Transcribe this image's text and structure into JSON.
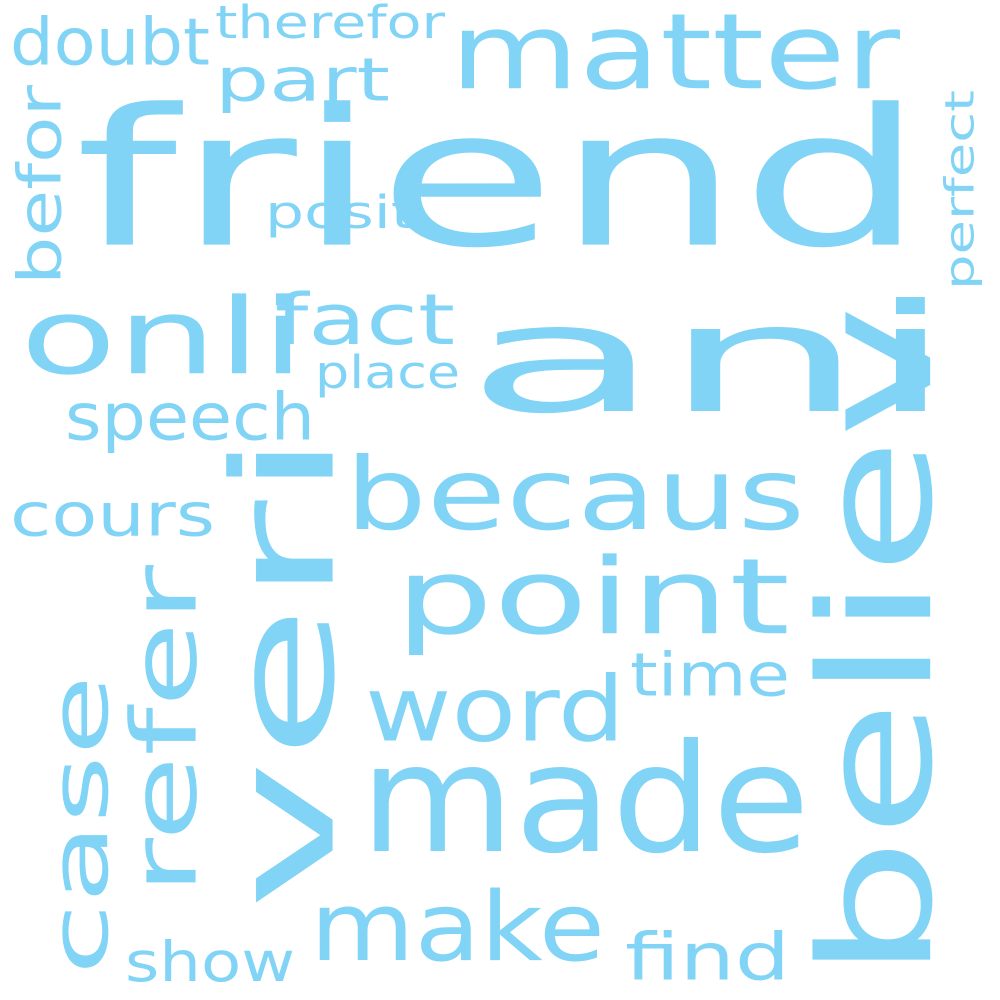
{
  "style": {
    "word_color": "#81d4f5",
    "background": "#ffffff"
  },
  "words": [
    {
      "text": "friend"
    },
    {
      "text": "ani"
    },
    {
      "text": "veri"
    },
    {
      "text": "believ"
    },
    {
      "text": "made"
    },
    {
      "text": "matter"
    },
    {
      "text": "becaus"
    },
    {
      "text": "point"
    },
    {
      "text": "onli"
    },
    {
      "text": "make"
    },
    {
      "text": "word"
    },
    {
      "text": "case"
    },
    {
      "text": "refer"
    },
    {
      "text": "speech"
    },
    {
      "text": "doubt"
    },
    {
      "text": "part"
    },
    {
      "text": "therefor"
    },
    {
      "text": "cours"
    },
    {
      "text": "fact"
    },
    {
      "text": "find"
    },
    {
      "text": "show"
    },
    {
      "text": "befor"
    },
    {
      "text": "time"
    },
    {
      "text": "posit"
    },
    {
      "text": "place"
    },
    {
      "text": "perfect"
    }
  ]
}
